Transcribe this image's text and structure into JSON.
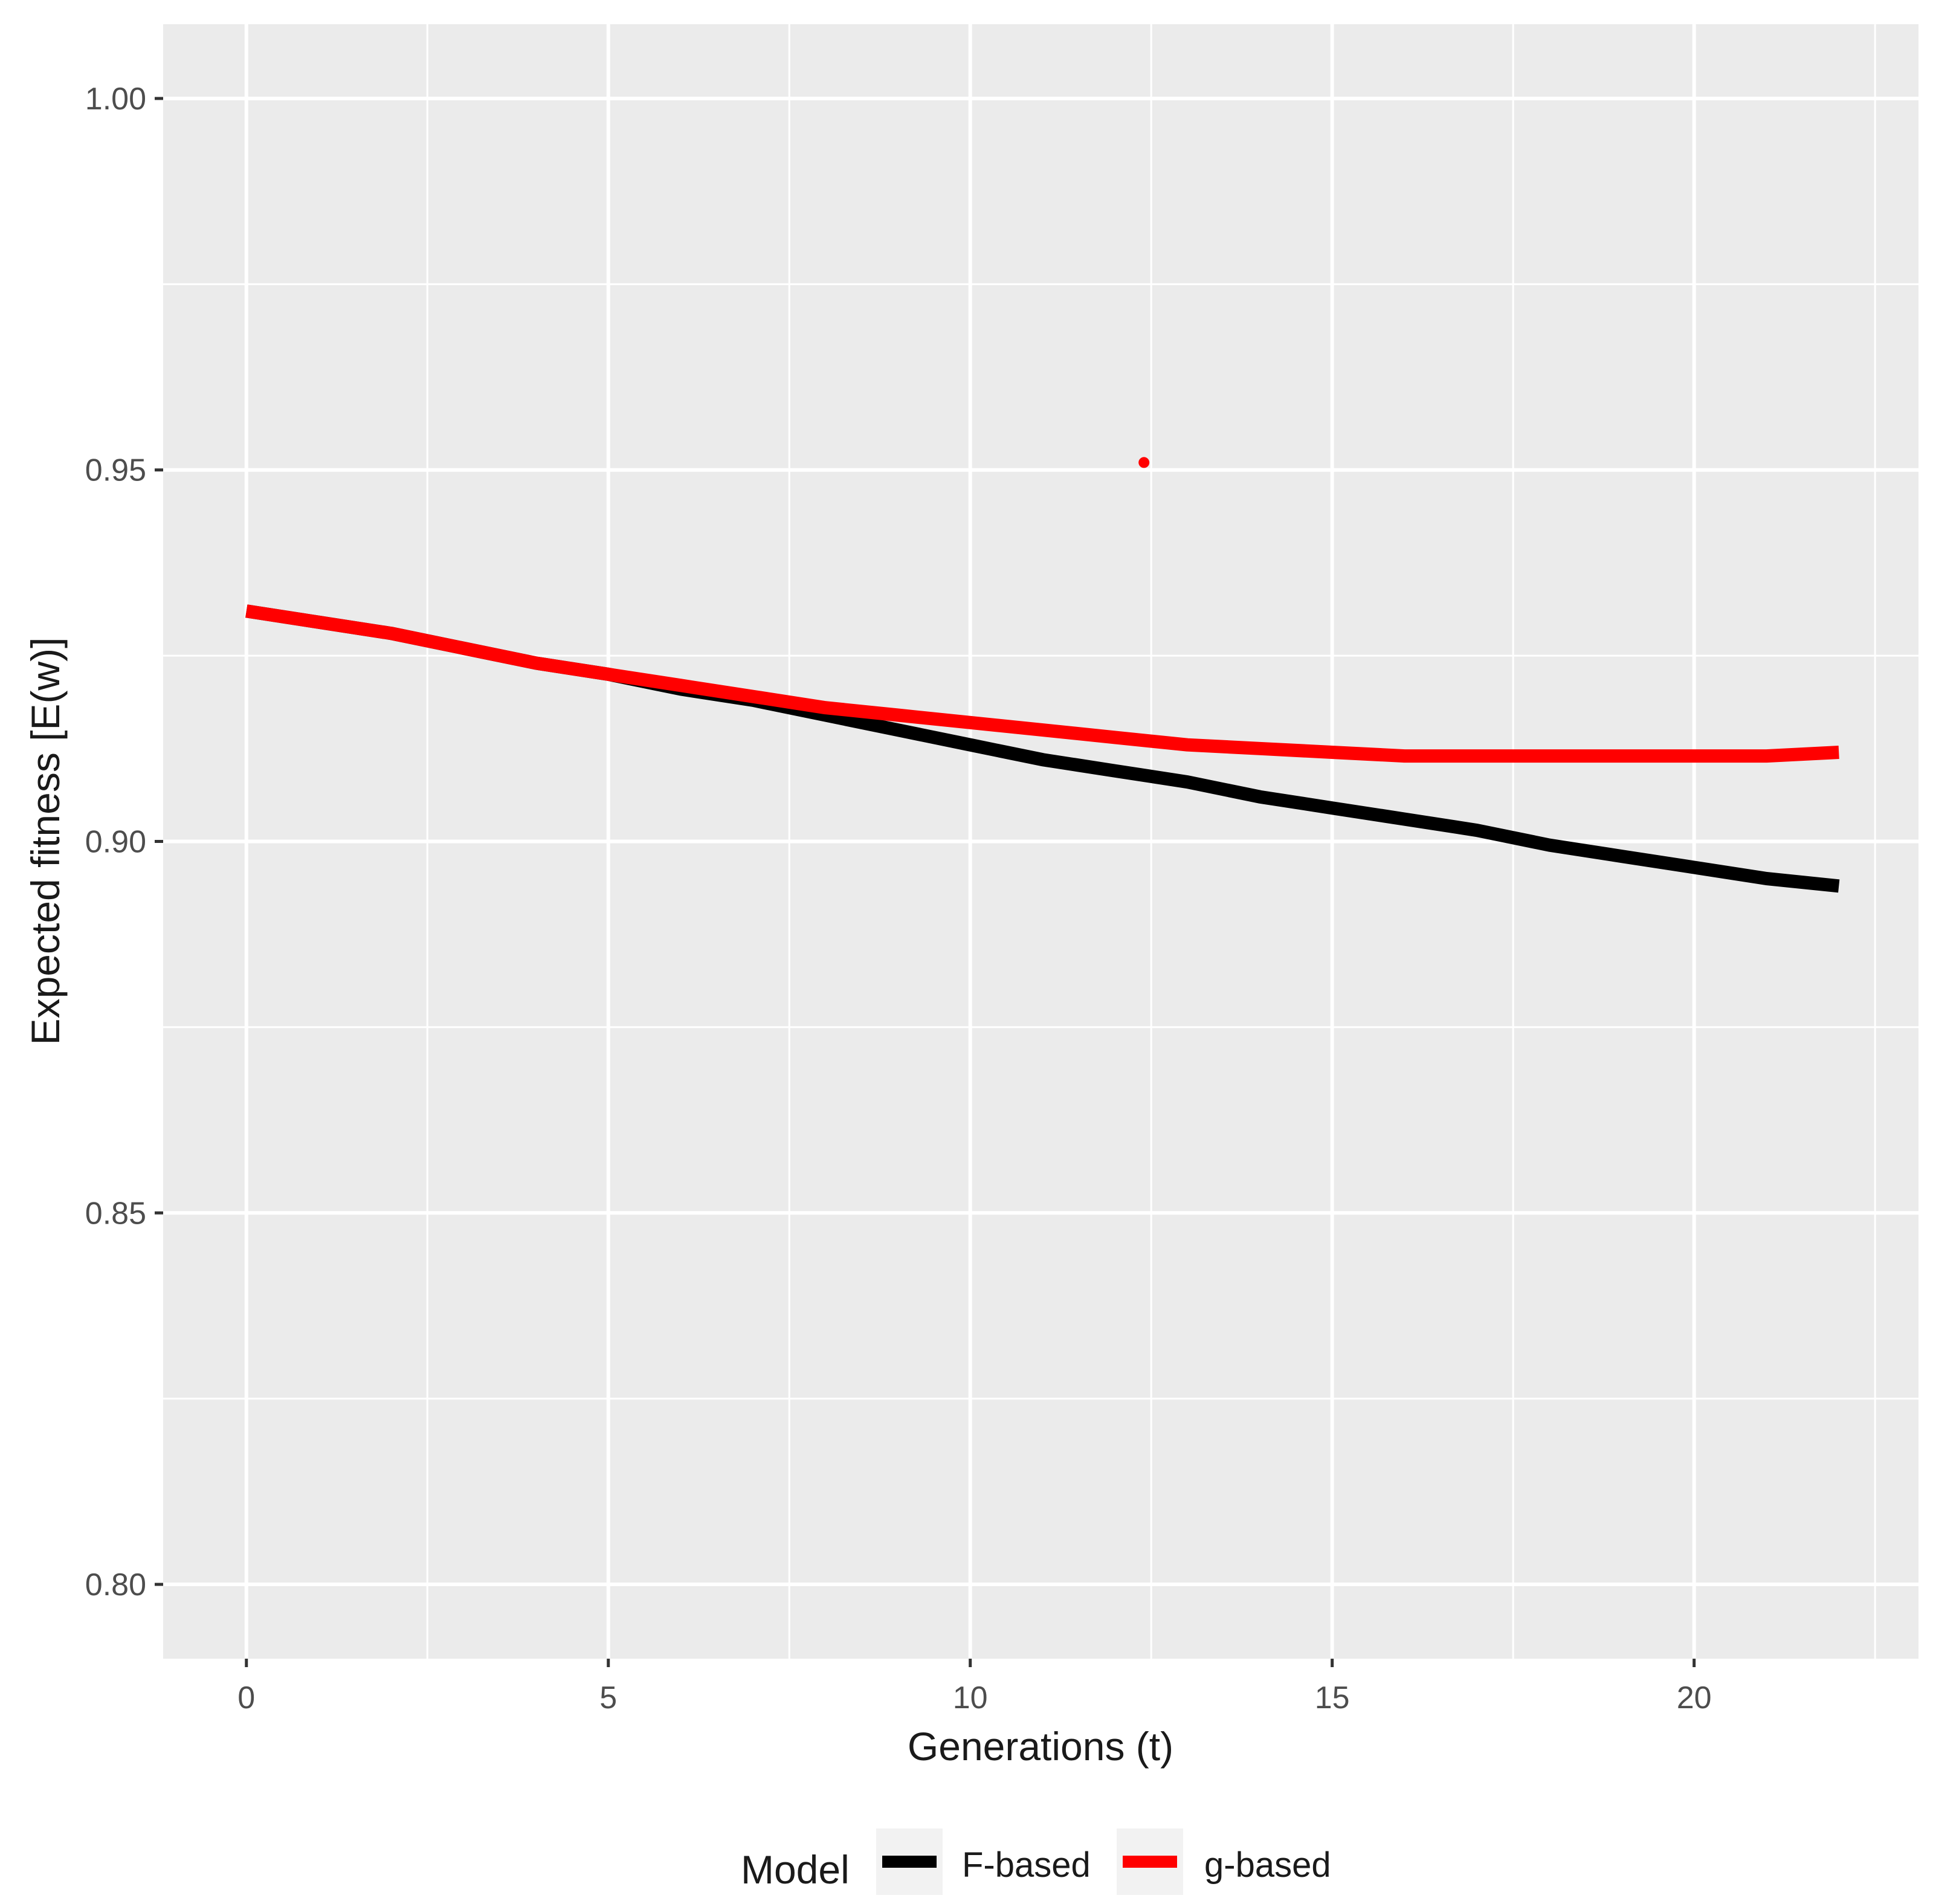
{
  "chart_data": {
    "type": "line",
    "xlabel": "Generations (t)",
    "ylabel": "Expected fitness [E(w)]",
    "xlim": [
      -1.15,
      23.1
    ],
    "ylim": [
      0.79,
      1.01
    ],
    "x_ticks": [
      0,
      5,
      10,
      15,
      20
    ],
    "x_tick_labels": [
      "0",
      "5",
      "10",
      "15",
      "20"
    ],
    "y_ticks": [
      0.8,
      0.85,
      0.9,
      0.95,
      1.0
    ],
    "y_tick_labels": [
      "0.80",
      "0.85",
      "0.90",
      "0.95",
      "1.00"
    ],
    "grid": true,
    "panel_background": "#ebebeb",
    "legend": {
      "title": "Model",
      "position": "bottom",
      "entries": [
        "F-based",
        "g-based"
      ]
    },
    "series": [
      {
        "name": "F-based",
        "color": "#000000",
        "x": [
          0,
          1,
          2,
          3,
          4,
          5,
          6,
          7,
          8,
          9,
          10,
          11,
          12,
          13,
          14,
          15,
          16,
          17,
          18,
          19,
          20,
          21,
          22
        ],
        "y": [
          0.931,
          0.9295,
          0.928,
          0.926,
          0.924,
          0.9225,
          0.9205,
          0.919,
          0.917,
          0.915,
          0.913,
          0.911,
          0.9095,
          0.908,
          0.906,
          0.9045,
          0.903,
          0.9015,
          0.8995,
          0.898,
          0.8965,
          0.895,
          0.894
        ]
      },
      {
        "name": "g-based",
        "color": "#ff0000",
        "x": [
          0,
          1,
          2,
          3,
          4,
          5,
          6,
          7,
          8,
          9,
          10,
          11,
          12,
          13,
          14,
          15,
          16,
          17,
          18,
          19,
          20,
          21,
          22
        ],
        "y": [
          0.931,
          0.9295,
          0.928,
          0.926,
          0.924,
          0.9225,
          0.921,
          0.9195,
          0.918,
          0.917,
          0.916,
          0.915,
          0.914,
          0.913,
          0.9125,
          0.912,
          0.9115,
          0.9115,
          0.9115,
          0.9115,
          0.9115,
          0.9115,
          0.912
        ]
      }
    ],
    "outlier_point": {
      "series": "g-based",
      "color": "#ff0000",
      "x": 12.4,
      "y": 0.951
    }
  }
}
